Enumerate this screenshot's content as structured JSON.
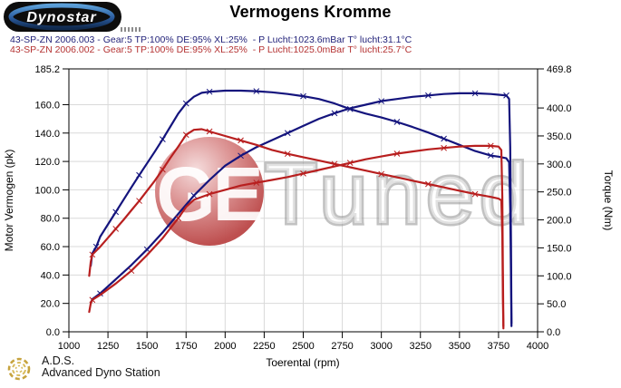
{
  "header": {
    "logo_text": "Dynostar",
    "title": "Vermogens Kromme"
  },
  "legend": {
    "runs": [
      {
        "text": "43-SP-ZN 2006.003 - Gear:5 TP:100% DE:95% XL:25%  - P Lucht:1023.6mBar T° lucht:31.1°C",
        "color": "#23237a"
      },
      {
        "text": "43-SP-ZN 2006.002 - Gear:5 TP:100% DE:95% XL:25%  - P Lucht:1025.0mBar T° lucht:25.7°C",
        "color": "#b43232"
      }
    ]
  },
  "watermark": {
    "circle_text": "GE",
    "text": "Tuned",
    "ball_color": "#bc4a4a"
  },
  "footer": {
    "ads_abbr": "A.D.S.",
    "ads_name": "Advanced Dyno Station"
  },
  "chart_data": {
    "type": "line",
    "title": "Vermogens Kromme",
    "xlabel": "Toerental (rpm)",
    "ylabel_left": "Motor Vermogen (pk)",
    "ylabel_right": "Torque (Nm)",
    "xlim": [
      1000,
      4000
    ],
    "ylim_left": [
      0,
      185.2
    ],
    "ylim_right": [
      0,
      469.8
    ],
    "grid": true,
    "x_ticks": [
      "1000",
      "1250",
      "1500",
      "1750",
      "2000",
      "2250",
      "2500",
      "2750",
      "3000",
      "3250",
      "3500",
      "3750",
      "4000"
    ],
    "left_ticks": [
      "185.2",
      "160.0",
      "140.0",
      "120.0",
      "100.0",
      "80.0",
      "60.0",
      "40.0",
      "20.0",
      "0.0"
    ],
    "right_ticks": [
      "469.8",
      "400.0",
      "350.0",
      "300.0",
      "250.0",
      "200.0",
      "150.0",
      "100.0",
      "50.0",
      "0.0"
    ],
    "colors": {
      "run_003": "#14147d",
      "run_002": "#b81f1f",
      "gridline": "#d9d9d9"
    },
    "series": [
      {
        "name": "43-SP-ZN 2006.003 vermogen (pk)",
        "axis": "left",
        "color": "#14147d",
        "points": [
          [
            1140,
            20
          ],
          [
            1150,
            23
          ],
          [
            1200,
            27
          ],
          [
            1300,
            37
          ],
          [
            1400,
            47
          ],
          [
            1500,
            58
          ],
          [
            1600,
            70
          ],
          [
            1700,
            83
          ],
          [
            1800,
            96
          ],
          [
            1900,
            107
          ],
          [
            2000,
            117
          ],
          [
            2100,
            124
          ],
          [
            2200,
            130
          ],
          [
            2300,
            135
          ],
          [
            2400,
            140
          ],
          [
            2500,
            145
          ],
          [
            2600,
            150
          ],
          [
            2700,
            154
          ],
          [
            2800,
            157.5
          ],
          [
            2900,
            160
          ],
          [
            3000,
            162.5
          ],
          [
            3100,
            164
          ],
          [
            3200,
            165.5
          ],
          [
            3300,
            166.5
          ],
          [
            3400,
            167.5
          ],
          [
            3500,
            168
          ],
          [
            3600,
            168
          ],
          [
            3700,
            167.5
          ],
          [
            3750,
            167
          ],
          [
            3800,
            166.5
          ],
          [
            3818,
            164
          ],
          [
            3825,
            130
          ],
          [
            3830,
            60
          ],
          [
            3833,
            6
          ]
        ]
      },
      {
        "name": "43-SP-ZN 2006.003 koppel (Nm)",
        "axis": "right",
        "color": "#14147d",
        "points": [
          [
            1140,
            118
          ],
          [
            1150,
            140
          ],
          [
            1175,
            152
          ],
          [
            1200,
            170
          ],
          [
            1250,
            192
          ],
          [
            1300,
            214
          ],
          [
            1350,
            236
          ],
          [
            1400,
            258
          ],
          [
            1450,
            280
          ],
          [
            1500,
            301
          ],
          [
            1550,
            322
          ],
          [
            1600,
            344
          ],
          [
            1650,
            367
          ],
          [
            1700,
            390
          ],
          [
            1750,
            408
          ],
          [
            1800,
            420
          ],
          [
            1850,
            427
          ],
          [
            1900,
            429
          ],
          [
            2000,
            431
          ],
          [
            2100,
            431
          ],
          [
            2200,
            430
          ],
          [
            2300,
            428
          ],
          [
            2400,
            425
          ],
          [
            2500,
            421
          ],
          [
            2600,
            416
          ],
          [
            2700,
            408
          ],
          [
            2800,
            398
          ],
          [
            2900,
            390
          ],
          [
            3000,
            383
          ],
          [
            3100,
            375
          ],
          [
            3200,
            366
          ],
          [
            3300,
            356
          ],
          [
            3400,
            345
          ],
          [
            3500,
            334
          ],
          [
            3600,
            323
          ],
          [
            3700,
            315
          ],
          [
            3750,
            313
          ],
          [
            3800,
            310
          ],
          [
            3818,
            303
          ],
          [
            3825,
            220
          ],
          [
            3830,
            90
          ],
          [
            3833,
            10
          ]
        ]
      },
      {
        "name": "43-SP-ZN 2006.002 vermogen (pk)",
        "axis": "left",
        "color": "#b81f1f",
        "points": [
          [
            1130,
            14
          ],
          [
            1140,
            20
          ],
          [
            1150,
            22.5
          ],
          [
            1200,
            26
          ],
          [
            1300,
            34
          ],
          [
            1400,
            43
          ],
          [
            1500,
            54
          ],
          [
            1600,
            66
          ],
          [
            1700,
            80
          ],
          [
            1750,
            88
          ],
          [
            1800,
            93
          ],
          [
            1900,
            97
          ],
          [
            2000,
            100
          ],
          [
            2100,
            103
          ],
          [
            2200,
            105
          ],
          [
            2300,
            107
          ],
          [
            2400,
            109
          ],
          [
            2500,
            111.5
          ],
          [
            2600,
            114
          ],
          [
            2700,
            116.5
          ],
          [
            2800,
            119
          ],
          [
            2900,
            121.5
          ],
          [
            3000,
            123.5
          ],
          [
            3100,
            125.5
          ],
          [
            3200,
            127
          ],
          [
            3300,
            128.5
          ],
          [
            3400,
            129.5
          ],
          [
            3500,
            130.5
          ],
          [
            3600,
            131
          ],
          [
            3700,
            131
          ],
          [
            3750,
            130.5
          ],
          [
            3768,
            128
          ],
          [
            3774,
            95
          ],
          [
            3778,
            45
          ],
          [
            3781,
            4
          ]
        ]
      },
      {
        "name": "43-SP-ZN 2006.002 koppel (Nm)",
        "axis": "right",
        "color": "#b81f1f",
        "points": [
          [
            1130,
            100
          ],
          [
            1140,
            125
          ],
          [
            1150,
            138
          ],
          [
            1200,
            152
          ],
          [
            1250,
            168
          ],
          [
            1300,
            184
          ],
          [
            1350,
            200
          ],
          [
            1400,
            217
          ],
          [
            1450,
            234
          ],
          [
            1500,
            252
          ],
          [
            1550,
            270
          ],
          [
            1600,
            290
          ],
          [
            1650,
            311
          ],
          [
            1700,
            331
          ],
          [
            1750,
            352
          ],
          [
            1800,
            361
          ],
          [
            1850,
            362
          ],
          [
            1900,
            358
          ],
          [
            1950,
            354
          ],
          [
            2000,
            350
          ],
          [
            2100,
            342
          ],
          [
            2200,
            334
          ],
          [
            2300,
            325
          ],
          [
            2400,
            318
          ],
          [
            2500,
            312
          ],
          [
            2600,
            306
          ],
          [
            2700,
            300
          ],
          [
            2800,
            294
          ],
          [
            2900,
            288
          ],
          [
            3000,
            282
          ],
          [
            3100,
            276
          ],
          [
            3200,
            270
          ],
          [
            3300,
            264
          ],
          [
            3400,
            258
          ],
          [
            3500,
            252
          ],
          [
            3600,
            246
          ],
          [
            3700,
            241
          ],
          [
            3750,
            238
          ],
          [
            3768,
            235
          ],
          [
            3774,
            170
          ],
          [
            3778,
            60
          ],
          [
            3781,
            6
          ]
        ]
      }
    ]
  }
}
